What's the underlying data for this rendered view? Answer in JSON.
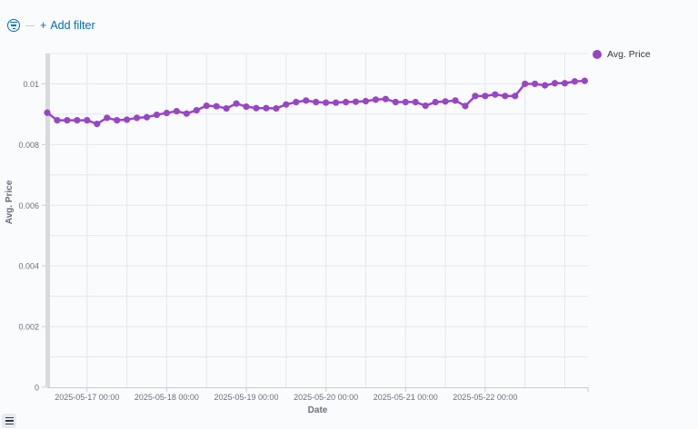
{
  "toolbar": {
    "add_filter_plus": "+",
    "add_filter_label": "Add filter",
    "filter_icon": "filter-icon"
  },
  "legend": {
    "label": "Avg. Price",
    "color": "#9845c6"
  },
  "legend_toggle_icon": "list-icon",
  "chart_data": {
    "type": "line",
    "xlabel": "Date",
    "ylabel": "Avg. Price",
    "ylim": [
      0,
      0.011
    ],
    "yticks": [
      0,
      0.002,
      0.004,
      0.006,
      0.008,
      0.01
    ],
    "ytick_labels": [
      "0",
      "0.002",
      "0.004",
      "0.006",
      "0.008",
      "0.01"
    ],
    "xlim": [
      "2025-05-16 12:00",
      "2025-05-23 07:00"
    ],
    "xticks": [
      "2025-05-17 00:00",
      "2025-05-18 00:00",
      "2025-05-19 00:00",
      "2025-05-20 00:00",
      "2025-05-21 00:00",
      "2025-05-22 00:00"
    ],
    "grid": true,
    "legend_position": "top-right",
    "series": [
      {
        "name": "Avg. Price",
        "color": "#9845c6",
        "x": [
          "2025-05-16 12:00",
          "2025-05-16 15:00",
          "2025-05-16 18:00",
          "2025-05-16 21:00",
          "2025-05-17 00:00",
          "2025-05-17 03:00",
          "2025-05-17 06:00",
          "2025-05-17 09:00",
          "2025-05-17 12:00",
          "2025-05-17 15:00",
          "2025-05-17 18:00",
          "2025-05-17 21:00",
          "2025-05-18 00:00",
          "2025-05-18 03:00",
          "2025-05-18 06:00",
          "2025-05-18 09:00",
          "2025-05-18 12:00",
          "2025-05-18 15:00",
          "2025-05-18 18:00",
          "2025-05-18 21:00",
          "2025-05-19 00:00",
          "2025-05-19 03:00",
          "2025-05-19 06:00",
          "2025-05-19 09:00",
          "2025-05-19 12:00",
          "2025-05-19 15:00",
          "2025-05-19 18:00",
          "2025-05-19 21:00",
          "2025-05-20 00:00",
          "2025-05-20 03:00",
          "2025-05-20 06:00",
          "2025-05-20 09:00",
          "2025-05-20 12:00",
          "2025-05-20 15:00",
          "2025-05-20 18:00",
          "2025-05-20 21:00",
          "2025-05-21 00:00",
          "2025-05-21 03:00",
          "2025-05-21 06:00",
          "2025-05-21 09:00",
          "2025-05-21 12:00",
          "2025-05-21 15:00",
          "2025-05-21 18:00",
          "2025-05-21 21:00",
          "2025-05-22 00:00",
          "2025-05-22 03:00",
          "2025-05-22 06:00",
          "2025-05-22 09:00",
          "2025-05-22 12:00",
          "2025-05-22 15:00",
          "2025-05-22 18:00",
          "2025-05-22 21:00",
          "2025-05-23 00:00",
          "2025-05-23 03:00",
          "2025-05-23 06:00"
        ],
        "y": [
          0.00905,
          0.0088,
          0.0088,
          0.0088,
          0.0088,
          0.00868,
          0.00888,
          0.0088,
          0.00882,
          0.00888,
          0.0089,
          0.00898,
          0.00904,
          0.0091,
          0.00902,
          0.00913,
          0.00928,
          0.00926,
          0.00919,
          0.00935,
          0.00925,
          0.0092,
          0.0092,
          0.00919,
          0.00932,
          0.0094,
          0.00945,
          0.0094,
          0.00938,
          0.00938,
          0.0094,
          0.00941,
          0.00943,
          0.00948,
          0.0095,
          0.0094,
          0.0094,
          0.0094,
          0.00928,
          0.0094,
          0.00942,
          0.00945,
          0.00927,
          0.0096,
          0.0096,
          0.00965,
          0.0096,
          0.0096,
          0.01,
          0.01,
          0.00995,
          0.01002,
          0.01002,
          0.01008,
          0.0101
        ]
      }
    ]
  }
}
